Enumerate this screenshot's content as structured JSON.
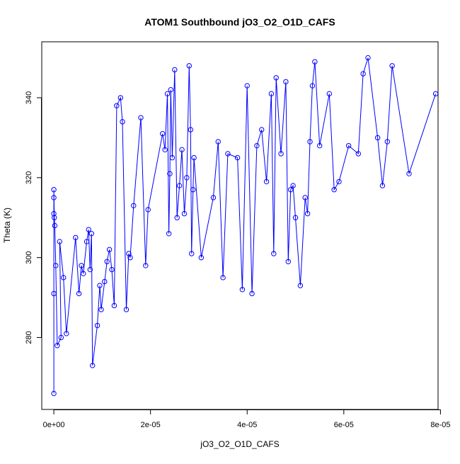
{
  "chart_data": {
    "type": "line",
    "title": "ATOM1 Southbound jO3_O2_O1D_CAFS",
    "xlabel": "jO3_O2_O1D_CAFS",
    "ylabel": "Theta (K)",
    "xlim": [
      -2.5e-06,
      7.95e-05
    ],
    "ylim": [
      262,
      354
    ],
    "x_ticks": [
      0,
      2e-05,
      4e-05,
      6e-05,
      8e-05
    ],
    "x_tick_labels": [
      "0e+00",
      "2e-05",
      "4e-05",
      "6e-05",
      "8e-05"
    ],
    "y_ticks": [
      280,
      300,
      320,
      340
    ],
    "y_tick_labels": [
      "280",
      "300",
      "320",
      "340"
    ],
    "grid": false,
    "marker": "open-circle",
    "colors": {
      "series": "#0000ff",
      "axis": "#000000",
      "background": "#ffffff"
    },
    "series": [
      {
        "x": [
          0.0,
          0.0,
          0.0,
          0.0,
          0.0,
          1e-07,
          2e-07,
          4e-07,
          7e-07,
          1.5e-06,
          1.2e-06,
          2e-06,
          2.6e-06,
          4.5e-06,
          5.2e-06,
          5.7e-06,
          6.1e-06,
          6.8e-06,
          7.2e-06,
          7.5e-06,
          7.8e-06,
          8e-06,
          9e-06,
          9.5e-06,
          9.8e-06,
          1.05e-05,
          1.1e-05,
          1.15e-05,
          1.2e-05,
          1.25e-05,
          1.3e-05,
          1.38e-05,
          1.42e-05,
          1.5e-05,
          1.55e-05,
          1.58e-05,
          1.65e-05,
          1.8e-05,
          1.9e-05,
          1.95e-05,
          2.25e-05,
          2.3e-05,
          2.35e-05,
          2.38e-05,
          2.4e-05,
          2.42e-05,
          2.45e-05,
          2.5e-05,
          2.55e-05,
          2.6e-05,
          2.65e-05,
          2.7e-05,
          2.75e-05,
          2.8e-05,
          2.83e-05,
          2.85e-05,
          2.88e-05,
          2.9e-05,
          3.05e-05,
          3.3e-05,
          3.4e-05,
          3.5e-05,
          3.6e-05,
          3.8e-05,
          3.9e-05,
          4e-05,
          4.1e-05,
          4.2e-05,
          4.3e-05,
          4.4e-05,
          4.5e-05,
          4.55e-05,
          4.6e-05,
          4.7e-05,
          4.8e-05,
          4.85e-05,
          4.9e-05,
          4.95e-05,
          5e-05,
          5.1e-05,
          5.2e-05,
          5.25e-05,
          5.3e-05,
          5.35e-05,
          5.4e-05,
          5.5e-05,
          5.7e-05,
          5.8e-05,
          5.9e-05,
          6.1e-05,
          6.3e-05,
          6.4e-05,
          6.5e-05,
          6.7e-05,
          6.8e-05,
          6.9e-05,
          7e-05,
          7.35e-05,
          7.9e-05
        ],
        "y": [
          266,
          291,
          311,
          315,
          317,
          310,
          308,
          298,
          278,
          280,
          304,
          295,
          281,
          305,
          291,
          298,
          296,
          304,
          307,
          297,
          306,
          273,
          283,
          293,
          287,
          294,
          299,
          302,
          297,
          288,
          338,
          340,
          334,
          287,
          301,
          300,
          313,
          335,
          298,
          312,
          331,
          327,
          341,
          306,
          321,
          342,
          325,
          347,
          310,
          318,
          327,
          311,
          320,
          348,
          332,
          301,
          317,
          325,
          300,
          315,
          329,
          295,
          326,
          325,
          292,
          343,
          291,
          328,
          332,
          319,
          341,
          301,
          345,
          326,
          344,
          299,
          317,
          318,
          310,
          293,
          315,
          311,
          329,
          343,
          349,
          328,
          341,
          317,
          319,
          328,
          326,
          346,
          350,
          330,
          318,
          329,
          348,
          321,
          341
        ]
      }
    ]
  }
}
